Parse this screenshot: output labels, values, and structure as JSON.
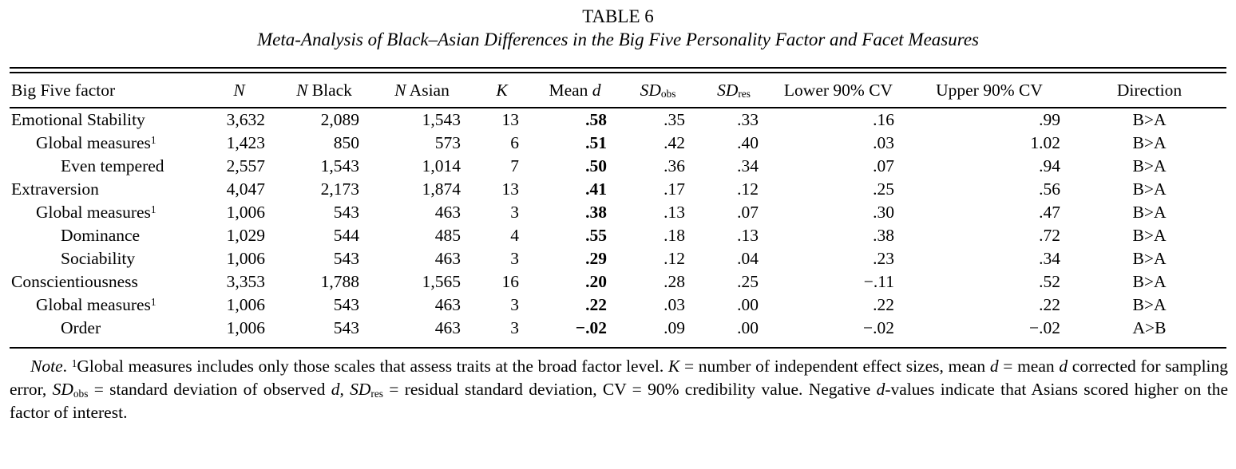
{
  "title": "TABLE 6",
  "subtitle": "Meta-Analysis of Black–Asian Differences in the Big Five Personality Factor and Facet Measures",
  "table": {
    "columns": [
      {
        "key": "factor",
        "align": "left",
        "label_parts": [
          {
            "t": "Big Five factor"
          }
        ]
      },
      {
        "key": "n",
        "align": "right",
        "label_parts": [
          {
            "t": "N",
            "i": true
          }
        ]
      },
      {
        "key": "n_black",
        "align": "right",
        "label_parts": [
          {
            "t": "N",
            "i": true
          },
          {
            "t": " Black"
          }
        ]
      },
      {
        "key": "n_asian",
        "align": "right",
        "label_parts": [
          {
            "t": "N",
            "i": true
          },
          {
            "t": " Asian"
          }
        ]
      },
      {
        "key": "k",
        "align": "right",
        "label_parts": [
          {
            "t": "K",
            "i": true
          }
        ]
      },
      {
        "key": "mean_d",
        "align": "right",
        "label_parts": [
          {
            "t": "Mean "
          },
          {
            "t": "d",
            "i": true
          }
        ]
      },
      {
        "key": "sd_obs",
        "align": "right",
        "label_parts": [
          {
            "t": "SD",
            "i": true
          },
          {
            "t": "obs",
            "sub": true
          }
        ]
      },
      {
        "key": "sd_res",
        "align": "right",
        "label_parts": [
          {
            "t": "SD",
            "i": true
          },
          {
            "t": "res",
            "sub": true
          }
        ]
      },
      {
        "key": "lower_cv",
        "align": "right",
        "label_parts": [
          {
            "t": "Lower 90% CV"
          }
        ]
      },
      {
        "key": "upper_cv",
        "align": "right",
        "label_parts": [
          {
            "t": "Upper 90% CV"
          }
        ]
      },
      {
        "key": "direction",
        "align": "center",
        "label_parts": [
          {
            "t": "Direction"
          }
        ]
      }
    ],
    "rows": [
      {
        "factor": "Emotional Stability",
        "indent": 0,
        "sup": "",
        "n": "3,632",
        "n_black": "2,089",
        "n_asian": "1,543",
        "k": "13",
        "mean_d": ".58",
        "sd_obs": ".35",
        "sd_res": ".33",
        "lower_cv": ".16",
        "upper_cv": ".99",
        "direction": "B>A"
      },
      {
        "factor": "Global measures",
        "indent": 1,
        "sup": "1",
        "n": "1,423",
        "n_black": "850",
        "n_asian": "573",
        "k": "6",
        "mean_d": ".51",
        "sd_obs": ".42",
        "sd_res": ".40",
        "lower_cv": ".03",
        "upper_cv": "1.02",
        "direction": "B>A"
      },
      {
        "factor": "Even tempered",
        "indent": 2,
        "sup": "",
        "n": "2,557",
        "n_black": "1,543",
        "n_asian": "1,014",
        "k": "7",
        "mean_d": ".50",
        "sd_obs": ".36",
        "sd_res": ".34",
        "lower_cv": ".07",
        "upper_cv": ".94",
        "direction": "B>A"
      },
      {
        "factor": "Extraversion",
        "indent": 0,
        "sup": "",
        "n": "4,047",
        "n_black": "2,173",
        "n_asian": "1,874",
        "k": "13",
        "mean_d": ".41",
        "sd_obs": ".17",
        "sd_res": ".12",
        "lower_cv": ".25",
        "upper_cv": ".56",
        "direction": "B>A"
      },
      {
        "factor": "Global measures",
        "indent": 1,
        "sup": "1",
        "n": "1,006",
        "n_black": "543",
        "n_asian": "463",
        "k": "3",
        "mean_d": ".38",
        "sd_obs": ".13",
        "sd_res": ".07",
        "lower_cv": ".30",
        "upper_cv": ".47",
        "direction": "B>A"
      },
      {
        "factor": "Dominance",
        "indent": 2,
        "sup": "",
        "n": "1,029",
        "n_black": "544",
        "n_asian": "485",
        "k": "4",
        "mean_d": ".55",
        "sd_obs": ".18",
        "sd_res": ".13",
        "lower_cv": ".38",
        "upper_cv": ".72",
        "direction": "B>A"
      },
      {
        "factor": "Sociability",
        "indent": 2,
        "sup": "",
        "n": "1,006",
        "n_black": "543",
        "n_asian": "463",
        "k": "3",
        "mean_d": ".29",
        "sd_obs": ".12",
        "sd_res": ".04",
        "lower_cv": ".23",
        "upper_cv": ".34",
        "direction": "B>A"
      },
      {
        "factor": "Conscientiousness",
        "indent": 0,
        "sup": "",
        "n": "3,353",
        "n_black": "1,788",
        "n_asian": "1,565",
        "k": "16",
        "mean_d": ".20",
        "sd_obs": ".28",
        "sd_res": ".25",
        "lower_cv": "−.11",
        "upper_cv": ".52",
        "direction": "B>A"
      },
      {
        "factor": "Global measures",
        "indent": 1,
        "sup": "1",
        "n": "1,006",
        "n_black": "543",
        "n_asian": "463",
        "k": "3",
        "mean_d": ".22",
        "sd_obs": ".03",
        "sd_res": ".00",
        "lower_cv": ".22",
        "upper_cv": ".22",
        "direction": "B>A"
      },
      {
        "factor": "Order",
        "indent": 2,
        "sup": "",
        "n": "1,006",
        "n_black": "543",
        "n_asian": "463",
        "k": "3",
        "mean_d": "−.02",
        "sd_obs": ".09",
        "sd_res": ".00",
        "lower_cv": "−.02",
        "upper_cv": "−.02",
        "direction": "A>B"
      }
    ]
  },
  "note": {
    "segments": [
      {
        "t": "Note",
        "i": true
      },
      {
        "t": ". "
      },
      {
        "t": "1",
        "sup": true
      },
      {
        "t": "Global measures includes only those scales that assess traits at the broad factor level. "
      },
      {
        "t": "K",
        "i": true
      },
      {
        "t": " = number of independent effect sizes, mean "
      },
      {
        "t": "d",
        "i": true
      },
      {
        "t": " = mean "
      },
      {
        "t": "d",
        "i": true
      },
      {
        "t": " corrected for sampling error, "
      },
      {
        "t": "SD",
        "i": true
      },
      {
        "t": "obs",
        "sub": true
      },
      {
        "t": " = standard deviation of observed "
      },
      {
        "t": "d",
        "i": true
      },
      {
        "t": ", "
      },
      {
        "t": "SD",
        "i": true
      },
      {
        "t": "res",
        "sub": true
      },
      {
        "t": " = residual standard deviation, CV = 90% credibility value. Negative "
      },
      {
        "t": "d",
        "i": true
      },
      {
        "t": "-values indicate that Asians scored higher on the factor of interest."
      }
    ]
  }
}
